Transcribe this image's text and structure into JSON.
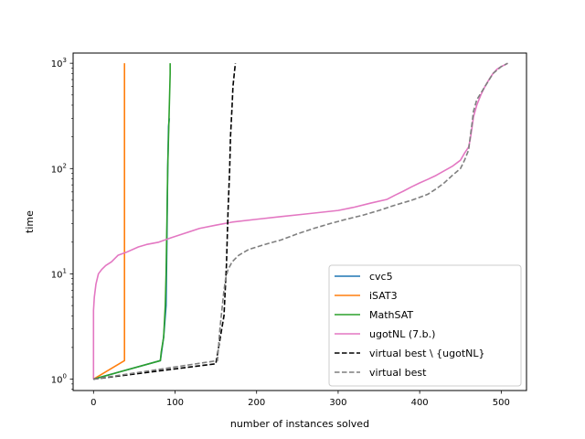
{
  "chart_data": {
    "type": "line",
    "title": "",
    "xlabel": "number of instances solved",
    "ylabel": "time",
    "xscale": "linear",
    "yscale": "log",
    "xlim": [
      -25,
      531
    ],
    "ylim": [
      0.78,
      1250
    ],
    "xticks": [
      0,
      100,
      200,
      300,
      400,
      500
    ],
    "xtick_labels": [
      "0",
      "100",
      "200",
      "300",
      "400",
      "500"
    ],
    "yticks": [
      1,
      10,
      100,
      1000
    ],
    "ytick_labels": [
      "10^0",
      "10^1",
      "10^2",
      "10^3"
    ],
    "ytick_label_parts": [
      {
        "base": "10",
        "exp": "0"
      },
      {
        "base": "10",
        "exp": "1"
      },
      {
        "base": "10",
        "exp": "2"
      },
      {
        "base": "10",
        "exp": "3"
      }
    ],
    "grid": false,
    "legend_position": "lower-right",
    "series": [
      {
        "name": "cvc5",
        "color": "#1f77b4",
        "dash": "solid",
        "x": [
          0,
          82,
          86,
          89,
          90,
          91,
          92,
          93
        ],
        "y": [
          1.0,
          1.5,
          2.5,
          5,
          20,
          100,
          250,
          300
        ]
      },
      {
        "name": "iSAT3",
        "color": "#ff7f0e",
        "dash": "solid",
        "x": [
          0,
          38,
          38,
          38
        ],
        "y": [
          1.0,
          1.5,
          30,
          1000
        ]
      },
      {
        "name": "MathSAT",
        "color": "#2ca02c",
        "dash": "solid",
        "x": [
          0,
          82,
          83,
          86,
          88,
          89,
          90,
          91,
          92,
          93,
          94,
          94
        ],
        "y": [
          1.0,
          1.5,
          1.8,
          2.5,
          5,
          10,
          30,
          100,
          200,
          400,
          800,
          1000
        ]
      },
      {
        "name": "ugotNL (7.b.)",
        "color": "#e377c2",
        "dash": "solid",
        "x": [
          0,
          0,
          1,
          3,
          6,
          10,
          15,
          22,
          30,
          40,
          55,
          65,
          80,
          95,
          110,
          130,
          150,
          170,
          200,
          230,
          260,
          300,
          320,
          340,
          360,
          370,
          380,
          390,
          400,
          410,
          420,
          430,
          440,
          450,
          455,
          460,
          462,
          464,
          466,
          470,
          475,
          480,
          485,
          490,
          495,
          500,
          505,
          508
        ],
        "y": [
          1.0,
          4.5,
          6,
          8,
          10,
          11,
          12,
          13,
          15,
          16,
          18,
          19,
          20,
          22,
          24,
          27,
          29,
          31,
          33,
          35,
          37,
          40,
          43,
          47,
          51,
          56,
          61,
          67,
          73,
          79,
          86,
          95,
          105,
          120,
          140,
          160,
          190,
          240,
          310,
          400,
          500,
          600,
          700,
          800,
          880,
          930,
          970,
          1000
        ]
      },
      {
        "name": "virtual best \\ {ugotNL}",
        "color": "#000000",
        "dash": "dashed",
        "x": [
          0,
          150,
          160,
          163,
          165,
          167,
          168,
          170,
          171,
          173,
          174
        ],
        "y": [
          1.0,
          1.4,
          4,
          12,
          40,
          100,
          200,
          400,
          600,
          850,
          1000
        ]
      },
      {
        "name": "virtual best",
        "color": "#7f7f7f",
        "dash": "dashed",
        "x": [
          0,
          152,
          155,
          158,
          160,
          162,
          165,
          170,
          178,
          190,
          210,
          230,
          250,
          270,
          290,
          310,
          330,
          350,
          370,
          390,
          410,
          420,
          430,
          440,
          450,
          455,
          460,
          462,
          464,
          466,
          470,
          480,
          490,
          500,
          508
        ],
        "y": [
          1.0,
          1.5,
          3,
          5,
          7,
          9,
          11,
          13,
          15,
          17,
          19,
          21,
          24,
          27,
          30,
          33,
          36,
          40,
          45,
          50,
          57,
          64,
          73,
          86,
          100,
          120,
          150,
          200,
          260,
          350,
          450,
          600,
          800,
          930,
          1000
        ]
      }
    ]
  }
}
